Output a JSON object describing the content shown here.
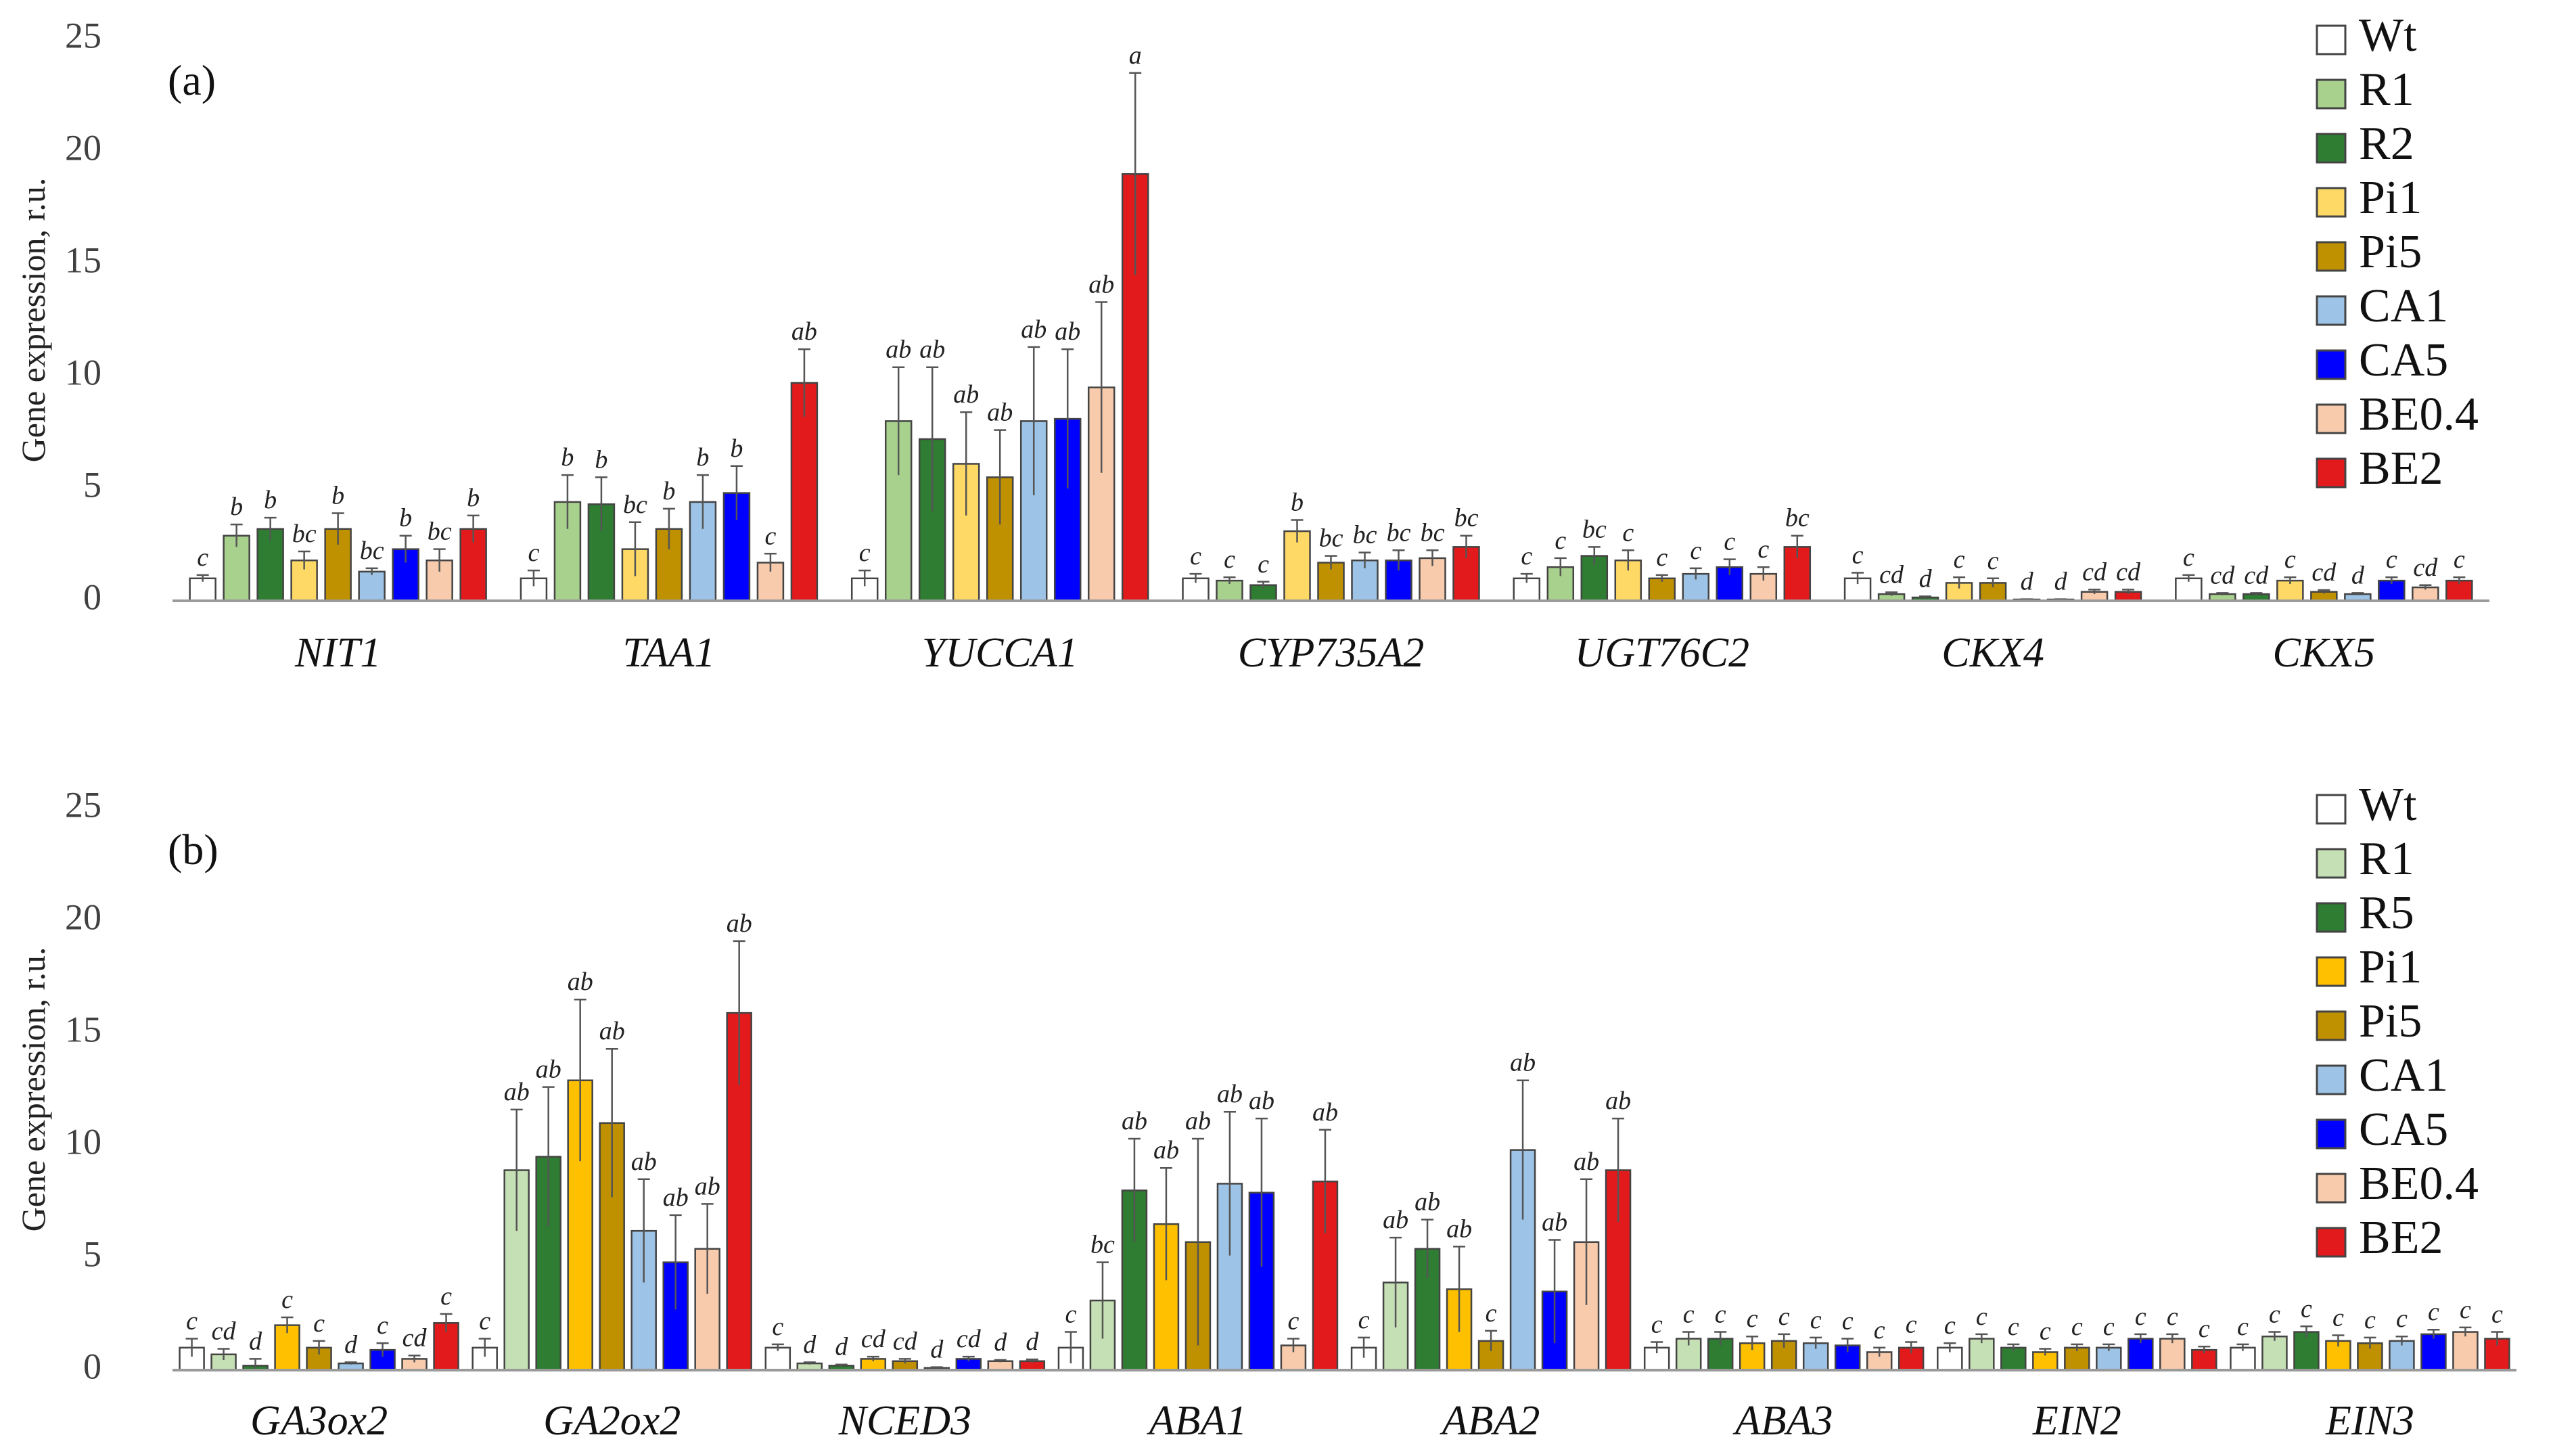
{
  "chart_data": [
    {
      "type": "bar",
      "panel_label": "(a)",
      "ylabel": "Gene expression, r.u.",
      "ylim": [
        0,
        25
      ],
      "yticks": [
        "0",
        "5",
        "10",
        "15",
        "20",
        "25"
      ],
      "legend_position": "top-right",
      "categories": [
        "NIT1",
        "TAA1",
        "YUCCA1",
        "CYP735A2",
        "UGT76C2",
        "CKX4",
        "CKX5"
      ],
      "series": [
        {
          "name": "Wt",
          "color": "#ffffff",
          "values": [
            1,
            1,
            1,
            1,
            1,
            1,
            1
          ],
          "errors": [
            0.15,
            0.35,
            0.35,
            0.2,
            0.2,
            0.25,
            0.15
          ],
          "letters": [
            "c",
            "c",
            "c",
            "c",
            "c",
            "c",
            "c"
          ]
        },
        {
          "name": "R1",
          "color": "#a9d18e",
          "values": [
            2.9,
            4.4,
            8.0,
            0.9,
            1.5,
            0.3,
            0.3
          ],
          "errors": [
            0.5,
            1.2,
            2.4,
            0.15,
            0.4,
            0.08,
            0.05
          ],
          "letters": [
            "b",
            "b",
            "ab",
            "c",
            "c",
            "cd",
            "cd"
          ]
        },
        {
          "name": "R2",
          "color": "#2e7d32",
          "values": [
            3.2,
            4.3,
            7.2,
            0.7,
            2.0,
            0.15,
            0.3
          ],
          "errors": [
            0.5,
            1.2,
            3.2,
            0.15,
            0.4,
            0.05,
            0.05
          ],
          "letters": [
            "b",
            "b",
            "ab",
            "c",
            "bc",
            "d",
            "cd"
          ]
        },
        {
          "name": "Pi1",
          "color": "#ffd966",
          "values": [
            1.8,
            2.3,
            6.1,
            3.1,
            1.8,
            0.8,
            0.9
          ],
          "errors": [
            0.4,
            1.2,
            2.3,
            0.5,
            0.45,
            0.25,
            0.15
          ],
          "letters": [
            "bc",
            "bc",
            "ab",
            "b",
            "c",
            "c",
            "c"
          ]
        },
        {
          "name": "Pi5",
          "color": "#bf9000",
          "values": [
            3.2,
            3.2,
            5.5,
            1.7,
            1.0,
            0.8,
            0.4
          ],
          "errors": [
            0.7,
            0.9,
            2.1,
            0.3,
            0.15,
            0.2,
            0.08
          ],
          "letters": [
            "b",
            "b",
            "ab",
            "bc",
            "c",
            "c",
            "cd"
          ]
        },
        {
          "name": "CA1",
          "color": "#9dc3e6",
          "values": [
            1.3,
            4.4,
            8.0,
            1.8,
            1.2,
            0.05,
            0.3
          ],
          "errors": [
            0.15,
            1.2,
            3.3,
            0.35,
            0.25,
            0.02,
            0.05
          ],
          "letters": [
            "bc",
            "b",
            "ab",
            "bc",
            "c",
            "d",
            "d"
          ]
        },
        {
          "name": "CA5",
          "color": "#0000ff",
          "values": [
            2.3,
            4.8,
            8.1,
            1.8,
            1.5,
            0.05,
            0.9
          ],
          "errors": [
            0.6,
            1.2,
            3.1,
            0.45,
            0.35,
            0.02,
            0.15
          ],
          "letters": [
            "b",
            "b",
            "ab",
            "bc",
            "c",
            "d",
            "c"
          ]
        },
        {
          "name": "BE0.4",
          "color": "#f8cbad",
          "values": [
            1.8,
            1.7,
            9.5,
            1.9,
            1.2,
            0.4,
            0.6
          ],
          "errors": [
            0.5,
            0.4,
            3.8,
            0.35,
            0.3,
            0.1,
            0.1
          ],
          "letters": [
            "bc",
            "c",
            "ab",
            "bc",
            "c",
            "cd",
            "cd"
          ]
        },
        {
          "name": "BE2",
          "color": "#e31a1c",
          "values": [
            3.2,
            9.7,
            19.0,
            2.4,
            2.4,
            0.4,
            0.9
          ],
          "errors": [
            0.6,
            1.5,
            4.5,
            0.5,
            0.5,
            0.1,
            0.15
          ],
          "letters": [
            "b",
            "ab",
            "a",
            "bc",
            "bc",
            "cd",
            "c"
          ]
        }
      ]
    },
    {
      "type": "bar",
      "panel_label": "(b)",
      "ylabel": "Gene expression, r.u.",
      "ylim": [
        0,
        25
      ],
      "yticks": [
        "0",
        "5",
        "10",
        "15",
        "20",
        "25"
      ],
      "legend_position": "top-right",
      "categories": [
        "GA3ox2",
        "GA2ox2",
        "NCED3",
        "ABA1",
        "ABA2",
        "ABA3",
        "EIN2",
        "EIN3"
      ],
      "series": [
        {
          "name": "Wt",
          "color": "#ffffff",
          "values": [
            1,
            1,
            1,
            1,
            1,
            1,
            1,
            1
          ],
          "errors": [
            0.4,
            0.4,
            0.15,
            0.7,
            0.45,
            0.25,
            0.2,
            0.15
          ],
          "letters": [
            "c",
            "c",
            "c",
            "c",
            "c",
            "c",
            "c",
            "c"
          ]
        },
        {
          "name": "R1",
          "color": "#c5e0b4",
          "values": [
            0.7,
            8.9,
            0.3,
            3.1,
            3.9,
            1.4,
            1.4,
            1.5
          ],
          "errors": [
            0.25,
            2.7,
            0.05,
            1.7,
            2.0,
            0.3,
            0.2,
            0.2
          ],
          "letters": [
            "cd",
            "ab",
            "d",
            "bc",
            "ab",
            "c",
            "c",
            "c"
          ]
        },
        {
          "name": "R5",
          "color": "#2e7d32",
          "values": [
            0.2,
            9.5,
            0.2,
            8.0,
            5.4,
            1.4,
            1.0,
            1.7
          ],
          "errors": [
            0.3,
            3.1,
            0.05,
            2.3,
            1.3,
            0.3,
            0.15,
            0.25
          ],
          "letters": [
            "d",
            "ab",
            "d",
            "ab",
            "ab",
            "c",
            "c",
            "c"
          ]
        },
        {
          "name": "Pi1",
          "color": "#ffc000",
          "values": [
            2.0,
            12.9,
            0.5,
            6.5,
            3.6,
            1.2,
            0.8,
            1.3
          ],
          "errors": [
            0.35,
            3.6,
            0.1,
            2.5,
            1.9,
            0.3,
            0.15,
            0.25
          ],
          "letters": [
            "c",
            "ab",
            "cd",
            "ab",
            "ab",
            "c",
            "c",
            "c"
          ]
        },
        {
          "name": "Pi5",
          "color": "#bf9000",
          "values": [
            1.0,
            11.0,
            0.4,
            5.7,
            1.3,
            1.3,
            1.0,
            1.2
          ],
          "errors": [
            0.3,
            3.3,
            0.1,
            4.6,
            0.45,
            0.3,
            0.15,
            0.25
          ],
          "letters": [
            "c",
            "ab",
            "cd",
            "ab",
            "c",
            "c",
            "c",
            "c"
          ]
        },
        {
          "name": "CA1",
          "color": "#9dc3e6",
          "values": [
            0.3,
            6.2,
            0.1,
            8.3,
            9.8,
            1.2,
            1.0,
            1.3
          ],
          "errors": [
            0.05,
            2.3,
            0.03,
            3.2,
            3.1,
            0.25,
            0.15,
            0.2
          ],
          "letters": [
            "d",
            "ab",
            "d",
            "ab",
            "ab",
            "c",
            "c",
            "c"
          ]
        },
        {
          "name": "CA5",
          "color": "#0000ff",
          "values": [
            0.9,
            4.8,
            0.5,
            7.9,
            3.5,
            1.1,
            1.4,
            1.6
          ],
          "errors": [
            0.3,
            2.1,
            0.1,
            3.3,
            2.3,
            0.3,
            0.2,
            0.2
          ],
          "letters": [
            "c",
            "ab",
            "cd",
            "ab",
            "ab",
            "c",
            "c",
            "c"
          ]
        },
        {
          "name": "BE0.4",
          "color": "#f8cbad",
          "values": [
            0.5,
            5.4,
            0.4,
            1.1,
            5.7,
            0.8,
            1.4,
            1.7
          ],
          "errors": [
            0.15,
            2.0,
            0.05,
            0.3,
            2.8,
            0.2,
            0.2,
            0.2
          ],
          "letters": [
            "cd",
            "ab",
            "d",
            "c",
            "ab",
            "c",
            "c",
            "c"
          ]
        },
        {
          "name": "BE2",
          "color": "#e31a1c",
          "values": [
            2.1,
            15.9,
            0.4,
            8.4,
            8.9,
            1.0,
            0.9,
            1.4
          ],
          "errors": [
            0.4,
            3.2,
            0.08,
            2.3,
            2.3,
            0.25,
            0.15,
            0.3
          ],
          "letters": [
            "c",
            "ab",
            "d",
            "ab",
            "ab",
            "c",
            "c",
            "c"
          ]
        }
      ]
    }
  ]
}
